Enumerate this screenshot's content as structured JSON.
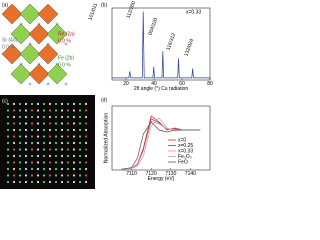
{
  "panels": {
    "a": {
      "label": "(a)",
      "sites": [
        {
          "name": "Re (2a)",
          "occupancy": "0.0 %"
        },
        {
          "name": "Fe (2b)",
          "occupancy": "0.0 %"
        },
        {
          "name": "Sr (4d)",
          "occupancy": "0.0 %"
        }
      ]
    },
    "b": {
      "label": "(b)",
      "type": "line",
      "annotation": "x=0.33",
      "xlabel": "2θ angle (°) Cu radiation",
      "color": "#2a3d9c",
      "x": [
        10,
        22,
        22.7,
        23.4,
        31.6,
        32.3,
        33,
        39.2,
        39.8,
        40.4,
        45.7,
        46.3,
        46.9,
        56.9,
        57.5,
        58.1,
        67,
        67.6,
        68.2,
        80
      ],
      "values": [
        3,
        3,
        12,
        3,
        3,
        95,
        3,
        3,
        18,
        3,
        3,
        40,
        3,
        3,
        30,
        3,
        3,
        16,
        3,
        3
      ],
      "xlim": [
        10,
        80
      ],
      "ylim": [
        0,
        100
      ],
      "xticks": [
        20,
        40,
        60,
        80
      ],
      "peaks": [
        "101/011",
        "112/200",
        "004/220",
        "116/312",
        "132/024"
      ]
    },
    "c": {
      "label": "(c)"
    },
    "d": {
      "label": "(d)",
      "type": "line",
      "xlabel": "Energy (eV)",
      "ylabel": "Normalized Absorption",
      "x": [
        7105,
        7110,
        7113,
        7116,
        7120,
        7124,
        7128,
        7132,
        7136,
        7140,
        7145
      ],
      "xlim": [
        7100,
        7150
      ],
      "ylim": [
        0,
        1.6
      ],
      "xticks": [
        7110,
        7120,
        7130,
        7140
      ],
      "series": [
        {
          "name": "x=0",
          "color": "#e0202a",
          "values": [
            0.02,
            0.05,
            0.15,
            0.55,
            1.35,
            1.2,
            1.0,
            1.05,
            1.0,
            1.0,
            1.0
          ]
        },
        {
          "name": "x=0.25",
          "color": "#b0304a",
          "values": [
            0.02,
            0.05,
            0.14,
            0.5,
            1.28,
            1.18,
            1.02,
            1.03,
            1.0,
            1.0,
            1.0
          ]
        },
        {
          "name": "x=0.33",
          "color": "#f08aa0",
          "values": [
            0.02,
            0.05,
            0.13,
            0.48,
            1.22,
            1.15,
            1.03,
            1.02,
            1.0,
            1.0,
            1.0
          ]
        },
        {
          "name": "Fe₂O₃",
          "color": "#aaaaaa",
          "values": [
            0.02,
            0.04,
            0.1,
            0.35,
            1.1,
            1.3,
            1.05,
            0.98,
            1.0,
            1.0,
            1.0
          ]
        },
        {
          "name": "FeO",
          "color": "#555555",
          "values": [
            0.02,
            0.06,
            0.3,
            0.9,
            1.2,
            1.0,
            0.95,
            1.0,
            1.0,
            1.0,
            1.0
          ]
        }
      ]
    }
  }
}
